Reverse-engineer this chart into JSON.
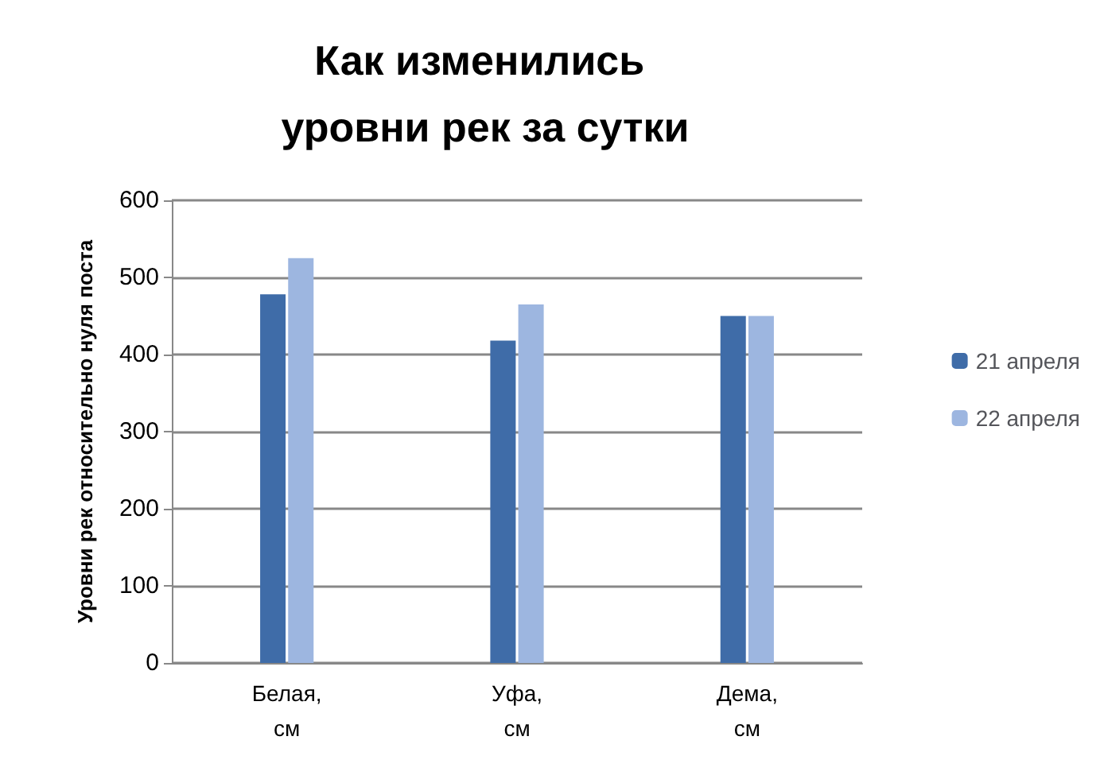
{
  "chart_data": {
    "type": "bar",
    "title": "Как изменились уровни рек за сутки",
    "ylabel": "Уровни рек относительно нуля поста",
    "categories": [
      "Белая, см",
      "Уфа, см",
      "Дема, см"
    ],
    "series": [
      {
        "name": "21 апреля",
        "color": "#3f6ca8",
        "values": [
          478,
          418,
          450
        ]
      },
      {
        "name": "22 апреля",
        "color": "#9db6e0",
        "values": [
          525,
          465,
          450
        ]
      }
    ],
    "ylim": [
      0,
      600
    ],
    "yticks": [
      0,
      100,
      200,
      300,
      400,
      500,
      600
    ],
    "grid": "y",
    "legend": "right"
  }
}
